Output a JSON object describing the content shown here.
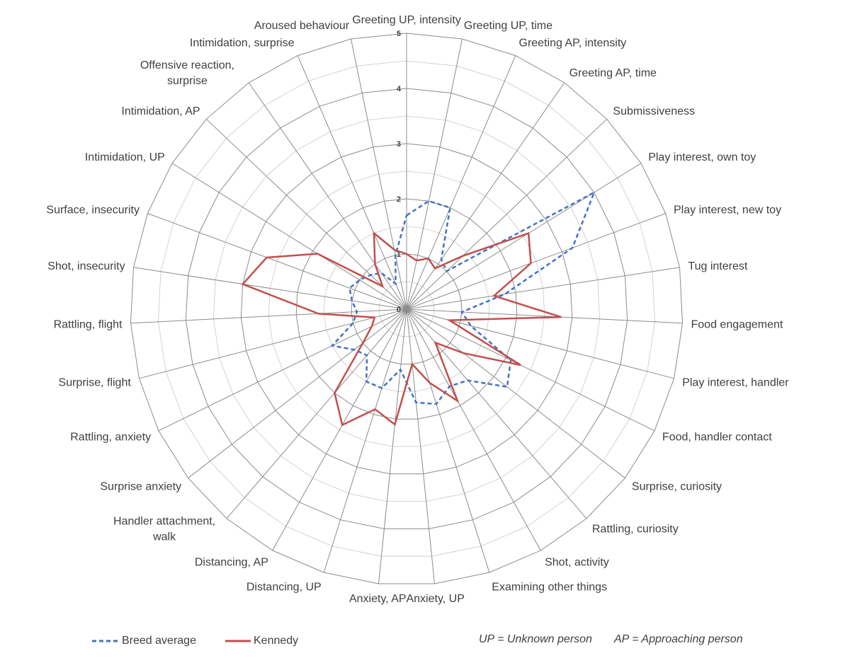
{
  "chart_data": {
    "type": "radar",
    "title": "",
    "categories": [
      "Greeting UP, intensity",
      "Greeting UP, time",
      "Greeting AP, intensity",
      "Greeting AP, time",
      "Submissiveness",
      "Play interest, own toy",
      "Play interest, new toy",
      "Tug interest",
      "Food engagement",
      "Play interest, handler",
      "Food, handler contact",
      "Surprise, curiosity",
      "Rattling, curiosity",
      "Shot, activity",
      "Examining other things",
      "Anxiety, UP",
      "Anxiety, AP",
      "Distancing, UP",
      "Distancing, AP",
      "Handler attachment, walk",
      "Surprise anxiety",
      "Rattling, anxiety",
      "Surprise, flight",
      "Rattling, flight",
      "Shot, insecurity",
      "Surface, insecurity",
      "Intimidation, UP",
      "Intimidation, AP",
      "Offensive reaction, surprise",
      "Intimidation, surprise",
      "Aroused behaviour"
    ],
    "rlim": [
      0,
      5
    ],
    "ticks": [
      "0",
      "1",
      "2",
      "3",
      "4",
      "5"
    ],
    "grid": true,
    "legend_position": "bottom",
    "series": [
      {
        "name": "Breed average",
        "style": "dashed",
        "color": "#4472C4",
        "values": [
          1.7,
          2.0,
          2.0,
          1.1,
          1.0,
          4.0,
          3.2,
          1.8,
          1.0,
          1.2,
          2.1,
          2.3,
          1.7,
          1.6,
          1.8,
          1.7,
          1.1,
          1.5,
          1.5,
          1.1,
          1.2,
          1.5,
          1.0,
          0.9,
          1.0,
          1.1,
          1.0,
          0.9,
          0.8,
          0.5,
          1.0
        ]
      },
      {
        "name": "Kennedy",
        "style": "solid",
        "color": "#C0504D",
        "values": [
          1.0,
          0.9,
          1.0,
          0.9,
          1.4,
          2.6,
          2.4,
          1.6,
          2.8,
          0.8,
          2.3,
          1.3,
          0.8,
          1.9,
          1.4,
          1.0,
          2.1,
          1.9,
          2.4,
          2.0,
          1.0,
          0.7,
          0.6,
          1.6,
          3.0,
          2.7,
          1.9,
          0.6,
          1.0,
          1.5,
          1.1
        ]
      }
    ]
  },
  "notes": {
    "up": "UP = Unknown person",
    "ap": "AP = Approaching person"
  }
}
